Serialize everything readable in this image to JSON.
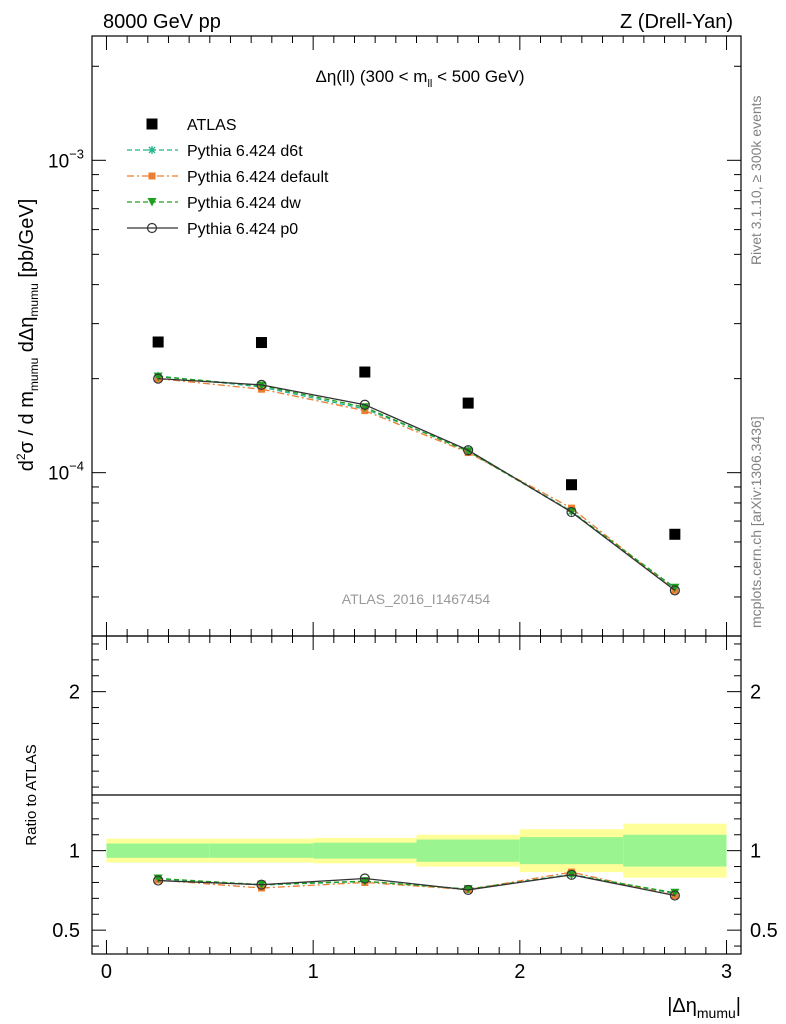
{
  "header": {
    "left": "8000 GeV pp",
    "right": "Z (Drell-Yan)"
  },
  "side_labels": {
    "rivet": "Rivet 3.1.10, ≥ 300k events",
    "mcplots": "mcplots.cern.ch [arXiv:1306.3436]"
  },
  "chart_data": [
    {
      "type": "scatter",
      "panel": "main",
      "title": "Δη(ll) (300 < m_ll < 500 GeV)",
      "ylabel": "d²σ / d m_mumu dΔη_mumu [pb/GeV]",
      "yscale": "log",
      "ylim": [
        3e-05,
        0.0025
      ],
      "xlim": [
        -0.07,
        3.07
      ],
      "y_ticks": [
        {
          "value": 0.001,
          "label": "10^-3"
        },
        {
          "value": 0.0001,
          "label": "10^-4"
        }
      ],
      "watermark": "ATLAS_2016_I1467454",
      "x": [
        0.25,
        0.75,
        1.25,
        1.75,
        2.25,
        2.75
      ],
      "series": [
        {
          "name": "ATLAS",
          "color": "#000000",
          "marker": "square",
          "line": "none",
          "values": [
            0.000262,
            0.000261,
            0.00021,
            0.000167,
            9.15e-05,
            6.35e-05
          ]
        },
        {
          "name": "Pythia 6.424 d6t",
          "color": "#22b48c",
          "marker": "star",
          "line": "dashed",
          "values": [
            0.000204,
            0.000188,
            0.00016,
            0.000118,
            7.52e-05,
            4.25e-05
          ]
        },
        {
          "name": "Pythia 6.424 default",
          "color": "#ee7d30",
          "marker": "square-small",
          "line": "dashdot",
          "values": [
            0.0002,
            0.000185,
            0.000158,
            0.000116,
            7.7e-05,
            4.2e-05
          ]
        },
        {
          "name": "Pythia 6.424 dw",
          "color": "#1da01d",
          "marker": "triangle-down",
          "line": "dashed",
          "values": [
            0.000203,
            0.00019,
            0.000162,
            0.000117,
            7.5e-05,
            4.28e-05
          ]
        },
        {
          "name": "Pythia 6.424 p0",
          "color": "#333333",
          "marker": "circle-open",
          "line": "solid",
          "values": [
            0.0002,
            0.000191,
            0.000165,
            0.000118,
            7.48e-05,
            4.2e-05
          ]
        }
      ]
    },
    {
      "type": "line",
      "panel": "ratio",
      "ylabel": "Ratio to ATLAS",
      "xlabel": "|Δη_mumu|",
      "ylim": [
        0.35,
        2.35
      ],
      "xlim": [
        -0.07,
        3.07
      ],
      "x_ticks": [
        0,
        1,
        2,
        3
      ],
      "y_ticks": [
        0.5,
        1,
        2
      ],
      "bins": [
        [
          0.0,
          0.5
        ],
        [
          0.5,
          1.0
        ],
        [
          1.0,
          1.5
        ],
        [
          1.5,
          2.0
        ],
        [
          2.0,
          2.5
        ],
        [
          2.5,
          3.0
        ]
      ],
      "band_stat": [
        [
          0.955,
          1.045
        ],
        [
          0.955,
          1.045
        ],
        [
          0.95,
          1.05
        ],
        [
          0.93,
          1.07
        ],
        [
          0.915,
          1.085
        ],
        [
          0.9,
          1.1
        ]
      ],
      "band_total": [
        [
          0.925,
          1.075
        ],
        [
          0.925,
          1.075
        ],
        [
          0.92,
          1.08
        ],
        [
          0.9,
          1.1
        ],
        [
          0.865,
          1.135
        ],
        [
          0.83,
          1.17
        ]
      ],
      "band_colors": {
        "stat": "#9af48f",
        "total": "#ffff99"
      },
      "x": [
        0.25,
        0.75,
        1.25,
        1.75,
        2.25,
        2.75
      ],
      "series": [
        {
          "name": "Pythia 6.424 d6t",
          "values": [
            0.823,
            0.784,
            0.806,
            0.758,
            0.851,
            0.73
          ]
        },
        {
          "name": "Pythia 6.424 default",
          "values": [
            0.815,
            0.765,
            0.8,
            0.755,
            0.865,
            0.718
          ]
        },
        {
          "name": "Pythia 6.424 dw",
          "values": [
            0.825,
            0.786,
            0.808,
            0.758,
            0.848,
            0.735
          ]
        },
        {
          "name": "Pythia 6.424 p0",
          "values": [
            0.812,
            0.786,
            0.825,
            0.753,
            0.848,
            0.718
          ]
        }
      ]
    }
  ]
}
